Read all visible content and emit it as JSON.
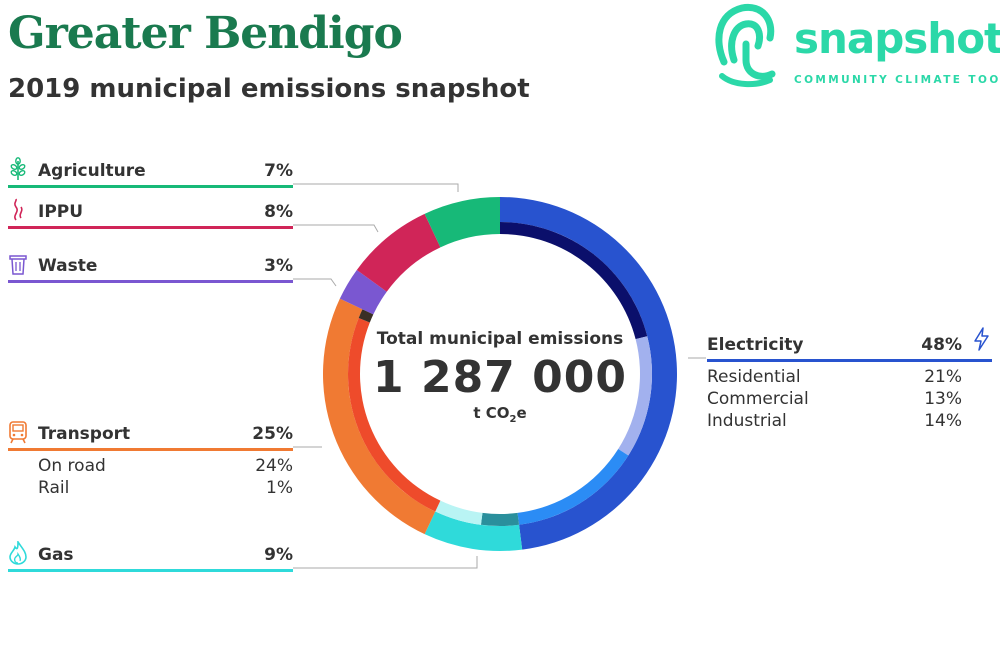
{
  "header": {
    "title": "Greater Bendigo",
    "subtitle": "2019 municipal emissions snapshot"
  },
  "logo": {
    "wordmark": "snapshot",
    "tagline": "COMMUNITY CLIMATE TOOL",
    "color": "#2bd8a8"
  },
  "chart_data": {
    "type": "pie",
    "variant": "donut",
    "center": {
      "label": "Total municipal emissions",
      "value": "1 287 000",
      "unit_base": "t CO",
      "unit_sub": "2",
      "unit_tail": "e"
    },
    "categories": [
      {
        "name": "Agriculture",
        "pct_label": "7%",
        "value": 7,
        "color": "#17b978",
        "icon": "wheat-icon"
      },
      {
        "name": "IPPU",
        "pct_label": "8%",
        "value": 8,
        "color": "#d02558",
        "icon": "smoke-icon"
      },
      {
        "name": "Waste",
        "pct_label": "3%",
        "value": 3,
        "color": "#7a57d1",
        "icon": "trash-bin-icon"
      },
      {
        "name": "Transport",
        "pct_label": "25%",
        "value": 25,
        "color": "#f07a33",
        "icon": "train-icon",
        "subcategories": [
          {
            "name": "On road",
            "pct_label": "24%",
            "value": 24,
            "color": "#ee4b2b"
          },
          {
            "name": "Rail",
            "pct_label": "1%",
            "value": 1,
            "color": "#3a2f25"
          }
        ]
      },
      {
        "name": "Gas",
        "pct_label": "9%",
        "value": 9,
        "color": "#2fdada",
        "icon": "flame-icon",
        "subcategories": [
          {
            "name": "",
            "value": 4,
            "color": "#2a8f9c"
          },
          {
            "name": "",
            "value": 5,
            "color": "#b9f4f4"
          }
        ]
      },
      {
        "name": "Electricity",
        "pct_label": "48%",
        "value": 48,
        "color": "#2853cf",
        "icon": "lightning-icon",
        "subcategories": [
          {
            "name": "Residential",
            "pct_label": "21%",
            "value": 21,
            "color": "#0b0f6b"
          },
          {
            "name": "Commercial",
            "pct_label": "13%",
            "value": 13,
            "color": "#a2b1ee"
          },
          {
            "name": "Industrial",
            "pct_label": "14%",
            "value": 14,
            "color": "#2b8cf5"
          }
        ]
      }
    ]
  }
}
